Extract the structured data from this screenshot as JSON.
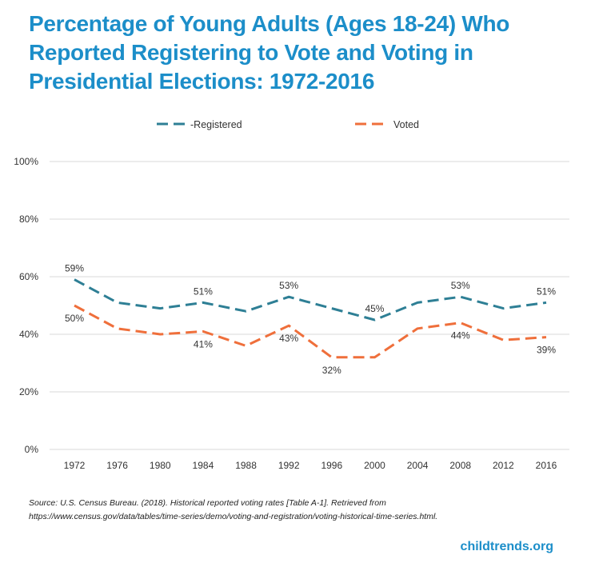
{
  "title_lines": [
    "Percentage of Young Adults (Ages 18-24) Who",
    "Reported Registering to Vote and Voting in",
    "Presidential Elections: 1972-2016"
  ],
  "chart_data": {
    "type": "line",
    "title": "Percentage of Young Adults (Ages 18-24) Who Reported Registering to Vote and Voting in Presidential Elections: 1972-2016",
    "xlabel": "",
    "ylabel": "",
    "categories": [
      "1972",
      "1976",
      "1980",
      "1984",
      "1988",
      "1992",
      "1996",
      "2000",
      "2004",
      "2008",
      "2012",
      "2016"
    ],
    "ylim": [
      0,
      100
    ],
    "yticks": [
      0,
      20,
      40,
      60,
      80,
      100
    ],
    "ytick_labels": [
      "0%",
      "20%",
      "40%",
      "60%",
      "80%",
      "100%"
    ],
    "grid": true,
    "legend_position": "top-center",
    "series": [
      {
        "name": "Registered",
        "legend_label": "-Registered",
        "color": "#2e7f95",
        "style": "dashed",
        "values": [
          59,
          51,
          49,
          51,
          48,
          53,
          49,
          45,
          51,
          53,
          49,
          51
        ],
        "data_labels": [
          {
            "index": 0,
            "text": "59%",
            "placement": "above"
          },
          {
            "index": 3,
            "text": "51%",
            "placement": "above"
          },
          {
            "index": 5,
            "text": "53%",
            "placement": "above"
          },
          {
            "index": 7,
            "text": "45%",
            "placement": "above"
          },
          {
            "index": 9,
            "text": "53%",
            "placement": "above"
          },
          {
            "index": 11,
            "text": "51%",
            "placement": "above"
          }
        ]
      },
      {
        "name": "Voted",
        "legend_label": "Voted",
        "color": "#ef6f3b",
        "style": "dashed",
        "values": [
          50,
          42,
          40,
          41,
          36,
          43,
          32,
          32,
          42,
          44,
          38,
          39
        ],
        "data_labels": [
          {
            "index": 0,
            "text": "50%",
            "placement": "below"
          },
          {
            "index": 3,
            "text": "41%",
            "placement": "below"
          },
          {
            "index": 5,
            "text": "43%",
            "placement": "below"
          },
          {
            "index": 6,
            "text": "32%",
            "placement": "below"
          },
          {
            "index": 9,
            "text": "44%",
            "placement": "below"
          },
          {
            "index": 11,
            "text": "39%",
            "placement": "below"
          }
        ]
      }
    ]
  },
  "source_lines": [
    "Source: U.S. Census Bureau. (2018). Historical reported voting rates [Table A-1]. Retrieved from",
    "https://www.census.gov/data/tables/time-series/demo/voting-and-registration/voting-historical-time-series.html."
  ],
  "brand": "childtrends.org",
  "colors": {
    "title": "#1c8ec9",
    "registered": "#2e7f95",
    "voted": "#ef6f3b",
    "grid": "#d9d9d9",
    "text": "#333333"
  }
}
